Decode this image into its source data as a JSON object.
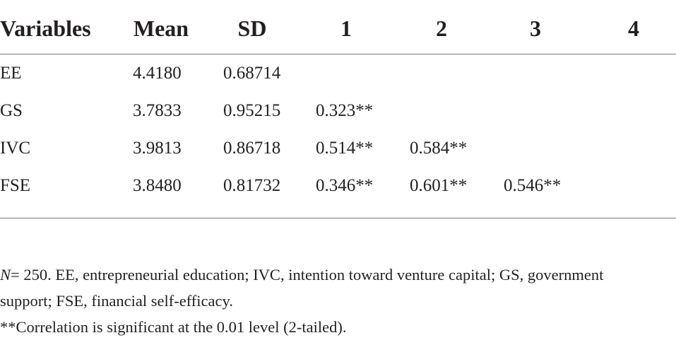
{
  "table": {
    "header": [
      "Variables",
      "Mean",
      "SD",
      "1",
      "2",
      "3",
      "4"
    ],
    "rows": [
      [
        "EE",
        "4.4180",
        "0.68714"
      ],
      [
        "GS",
        "3.7833",
        "0.95215",
        "0.323**"
      ],
      [
        "IVC",
        "3.9813",
        "0.86718",
        "0.514**",
        "0.584**"
      ],
      [
        "FSE",
        "3.8480",
        "0.81732",
        "0.346**",
        "0.601**",
        "0.546**"
      ]
    ]
  },
  "notes": {
    "n_label": "N",
    "definitions": "= 250. EE, entrepreneurial education; IVC, intention toward venture capital; GS, government support; FSE, financial self-efficacy.",
    "significance": "**Correlation is significant at the 0.01 level (2-tailed)."
  }
}
